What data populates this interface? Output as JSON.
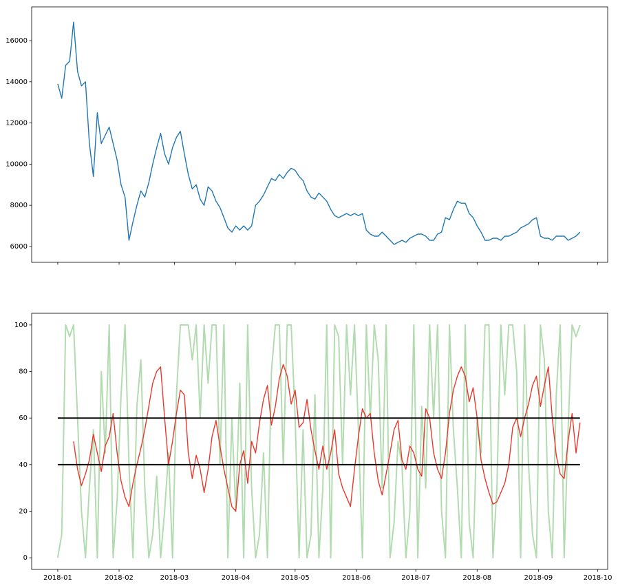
{
  "chart_data": [
    {
      "type": "line",
      "x": [
        0,
        2,
        4,
        6,
        8,
        10,
        12,
        14,
        16,
        18,
        20,
        22,
        24,
        26,
        28,
        30,
        32,
        34,
        36,
        38,
        40,
        42,
        44,
        46,
        48,
        50,
        52,
        54,
        56,
        58,
        60,
        62,
        64,
        66,
        68,
        70,
        72,
        74,
        76,
        78,
        80,
        82,
        84,
        86,
        88,
        90,
        92,
        94,
        96,
        98,
        100,
        102,
        104,
        106,
        108,
        110,
        112,
        114,
        116,
        118,
        120,
        122,
        124,
        126,
        128,
        130,
        132,
        134,
        136,
        138,
        140,
        142,
        144,
        146,
        148,
        150,
        152,
        154,
        156,
        158,
        160,
        162,
        164,
        166,
        168,
        170,
        172,
        174,
        176,
        178,
        180,
        182,
        184,
        186,
        188,
        190,
        192,
        194,
        196,
        198,
        200,
        202,
        204,
        206,
        208,
        210,
        212,
        214,
        216,
        218,
        220,
        222,
        224,
        226,
        228,
        230,
        232,
        234,
        236,
        238,
        240,
        242,
        244,
        246,
        248,
        250,
        252,
        254,
        256,
        258,
        260,
        262,
        264
      ],
      "series": [
        {
          "color": "#1f77b4",
          "values": [
            13900,
            13200,
            14800,
            15000,
            16900,
            14500,
            13800,
            14000,
            11000,
            9400,
            12500,
            11000,
            11400,
            11800,
            11000,
            10200,
            9000,
            8400,
            6300,
            7200,
            8000,
            8700,
            8400,
            9100,
            10000,
            10800,
            11500,
            10500,
            10000,
            10800,
            11300,
            11600,
            10500,
            9500,
            8800,
            9000,
            8300,
            8000,
            8900,
            8700,
            8200,
            7900,
            7400,
            6900,
            6700,
            7000,
            6800,
            7000,
            6800,
            7000,
            8000,
            8200,
            8500,
            8900,
            9300,
            9200,
            9500,
            9300,
            9600,
            9800,
            9700,
            9400,
            9200,
            8700,
            8400,
            8300,
            8600,
            8400,
            8200,
            7800,
            7500,
            7400,
            7500,
            7600,
            7500,
            7600,
            7500,
            7600,
            6800,
            6600,
            6500,
            6500,
            6700,
            6500,
            6300,
            6100,
            6200,
            6300,
            6200,
            6400,
            6500,
            6600,
            6600,
            6500,
            6300,
            6300,
            6600,
            6700,
            7400,
            7300,
            7800,
            8200,
            8100,
            8100,
            7600,
            7400,
            7000,
            6700,
            6300,
            6300,
            6400,
            6400,
            6300,
            6500,
            6500,
            6600,
            6700,
            6900,
            7000,
            7100,
            7300,
            7400,
            6500,
            6400,
            6400,
            6300,
            6500,
            6500,
            6500,
            6300,
            6400,
            6500,
            6700
          ]
        }
      ],
      "xlim": [
        -13.2,
        278
      ],
      "xticks": [
        0,
        31,
        59,
        90,
        120,
        151,
        181,
        212,
        243,
        273
      ],
      "ylim": [
        5230,
        17640
      ],
      "yticks": [
        6000,
        8000,
        10000,
        12000,
        14000,
        16000
      ]
    },
    {
      "type": "line",
      "series": [
        {
          "color": "#b2dcb0",
          "x": [
            0,
            2,
            4,
            6,
            8,
            10,
            12,
            14,
            16,
            18,
            20,
            22,
            24,
            26,
            28,
            30,
            32,
            34,
            36,
            38,
            40,
            42,
            44,
            46,
            48,
            50,
            52,
            54,
            56,
            58,
            60,
            62,
            64,
            66,
            68,
            70,
            72,
            74,
            76,
            78,
            80,
            82,
            84,
            86,
            88,
            90,
            92,
            94,
            96,
            98,
            100,
            102,
            104,
            106,
            108,
            110,
            112,
            114,
            116,
            118,
            120,
            122,
            124,
            126,
            128,
            130,
            132,
            134,
            136,
            138,
            140,
            142,
            144,
            146,
            148,
            150,
            152,
            154,
            156,
            158,
            160,
            162,
            164,
            166,
            168,
            170,
            172,
            174,
            176,
            178,
            180,
            182,
            184,
            186,
            188,
            190,
            192,
            194,
            196,
            198,
            200,
            202,
            204,
            206,
            208,
            210,
            212,
            214,
            216,
            218,
            220,
            222,
            224,
            226,
            228,
            230,
            232,
            234,
            236,
            238,
            240,
            242,
            244,
            246,
            248,
            250,
            252,
            254,
            256,
            258,
            260,
            262,
            264
          ],
          "values": [
            0,
            10,
            100,
            95,
            100,
            60,
            20,
            0,
            30,
            55,
            0,
            80,
            45,
            100,
            0,
            25,
            70,
            100,
            40,
            0,
            65,
            85,
            30,
            0,
            10,
            35,
            0,
            20,
            45,
            0,
            70,
            100,
            100,
            100,
            85,
            100,
            60,
            100,
            75,
            100,
            100,
            40,
            100,
            0,
            60,
            20,
            75,
            0,
            100,
            30,
            0,
            10,
            45,
            0,
            80,
            100,
            100,
            40,
            100,
            100,
            60,
            0,
            55,
            0,
            10,
            70,
            0,
            30,
            100,
            0,
            100,
            95,
            40,
            100,
            70,
            100,
            55,
            0,
            100,
            60,
            100,
            85,
            30,
            100,
            0,
            15,
            50,
            40,
            0,
            20,
            100,
            0,
            65,
            30,
            100,
            60,
            100,
            20,
            0,
            100,
            55,
            30,
            0,
            100,
            15,
            0,
            60,
            45,
            100,
            100,
            0,
            30,
            100,
            70,
            100,
            100,
            80,
            0,
            100,
            40,
            10,
            0,
            100,
            85,
            20,
            0,
            70,
            100,
            0,
            55,
            100,
            95,
            100
          ]
        },
        {
          "color": "#e8392e",
          "x": [
            8,
            10,
            12,
            14,
            16,
            18,
            20,
            22,
            24,
            26,
            28,
            30,
            32,
            34,
            36,
            38,
            40,
            42,
            44,
            46,
            48,
            50,
            52,
            54,
            56,
            58,
            60,
            62,
            64,
            66,
            68,
            70,
            72,
            74,
            76,
            78,
            80,
            82,
            84,
            86,
            88,
            90,
            92,
            94,
            96,
            98,
            100,
            102,
            104,
            106,
            108,
            110,
            112,
            114,
            116,
            118,
            120,
            122,
            124,
            126,
            128,
            130,
            132,
            134,
            136,
            138,
            140,
            142,
            144,
            146,
            148,
            150,
            152,
            154,
            156,
            158,
            160,
            162,
            164,
            166,
            168,
            170,
            172,
            174,
            176,
            178,
            180,
            182,
            184,
            186,
            188,
            190,
            192,
            194,
            196,
            198,
            200,
            202,
            204,
            206,
            208,
            210,
            212,
            214,
            216,
            218,
            220,
            222,
            224,
            226,
            228,
            230,
            232,
            234,
            236,
            238,
            240,
            242,
            244,
            246,
            248,
            250,
            252,
            254,
            256,
            258,
            260,
            262,
            264
          ],
          "values": [
            50,
            38,
            31,
            36,
            42,
            53,
            45,
            37,
            48,
            52,
            62,
            45,
            33,
            26,
            22,
            32,
            40,
            47,
            55,
            65,
            75,
            80,
            82,
            60,
            40,
            50,
            62,
            72,
            70,
            45,
            34,
            44,
            38,
            28,
            38,
            52,
            59,
            48,
            38,
            30,
            22,
            20,
            40,
            46,
            32,
            50,
            45,
            58,
            68,
            74,
            57,
            65,
            77,
            83,
            78,
            66,
            72,
            56,
            58,
            68,
            55,
            46,
            38,
            48,
            38,
            45,
            55,
            36,
            30,
            26,
            22,
            38,
            52,
            64,
            60,
            62,
            45,
            33,
            27,
            36,
            45,
            55,
            59,
            42,
            38,
            48,
            45,
            38,
            35,
            64,
            60,
            45,
            38,
            34,
            45,
            62,
            72,
            78,
            82,
            78,
            67,
            73,
            60,
            42,
            34,
            28,
            23,
            24,
            28,
            32,
            40,
            56,
            60,
            52,
            60,
            66,
            74,
            78,
            65,
            74,
            82,
            60,
            44,
            36,
            34,
            50,
            62,
            45,
            58
          ]
        }
      ],
      "hlines": [
        60,
        40
      ],
      "hline_range": [
        0,
        264
      ],
      "hline_color": "#000000",
      "xlim": [
        -13.2,
        278
      ],
      "xticks": [
        {
          "value": 0,
          "label": "2018-01"
        },
        {
          "value": 31,
          "label": "2018-02"
        },
        {
          "value": 59,
          "label": "2018-03"
        },
        {
          "value": 90,
          "label": "2018-04"
        },
        {
          "value": 120,
          "label": "2018-05"
        },
        {
          "value": 151,
          "label": "2018-06"
        },
        {
          "value": 181,
          "label": "2018-07"
        },
        {
          "value": 212,
          "label": "2018-08"
        },
        {
          "value": 243,
          "label": "2018-09"
        },
        {
          "value": 273,
          "label": "2018-10"
        }
      ],
      "ylim": [
        -5,
        105
      ],
      "yticks": [
        0,
        20,
        40,
        60,
        80,
        100
      ]
    }
  ]
}
